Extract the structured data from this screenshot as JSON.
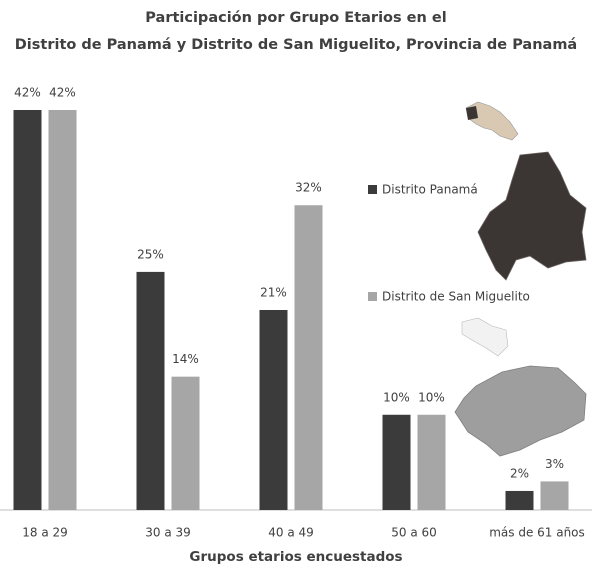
{
  "chart_data": {
    "type": "bar",
    "title": [
      "Participación por Grupo Etarios en el",
      "Distrito de Panamá y Distrito de San Miguelito, Provincia de Panamá"
    ],
    "x_label": "Grupos etarios encuestados",
    "categories": [
      "18 a 29",
      "30 a 39",
      "40 a 49",
      "50 a 60",
      "más de 61 años"
    ],
    "series": [
      {
        "name": "Distrito Panamá",
        "color": "#3b3b3b",
        "values": [
          42,
          25,
          21,
          10,
          2
        ],
        "value_labels": [
          "42%",
          "25%",
          "21%",
          "10%",
          "2%"
        ]
      },
      {
        "name": "Distrito de San Miguelito",
        "color": "#a6a6a6",
        "values": [
          42,
          14,
          32,
          10,
          3
        ],
        "value_labels": [
          "42%",
          "14%",
          "32%",
          "10%",
          "3%"
        ]
      }
    ],
    "ylim": [
      0,
      42
    ]
  }
}
